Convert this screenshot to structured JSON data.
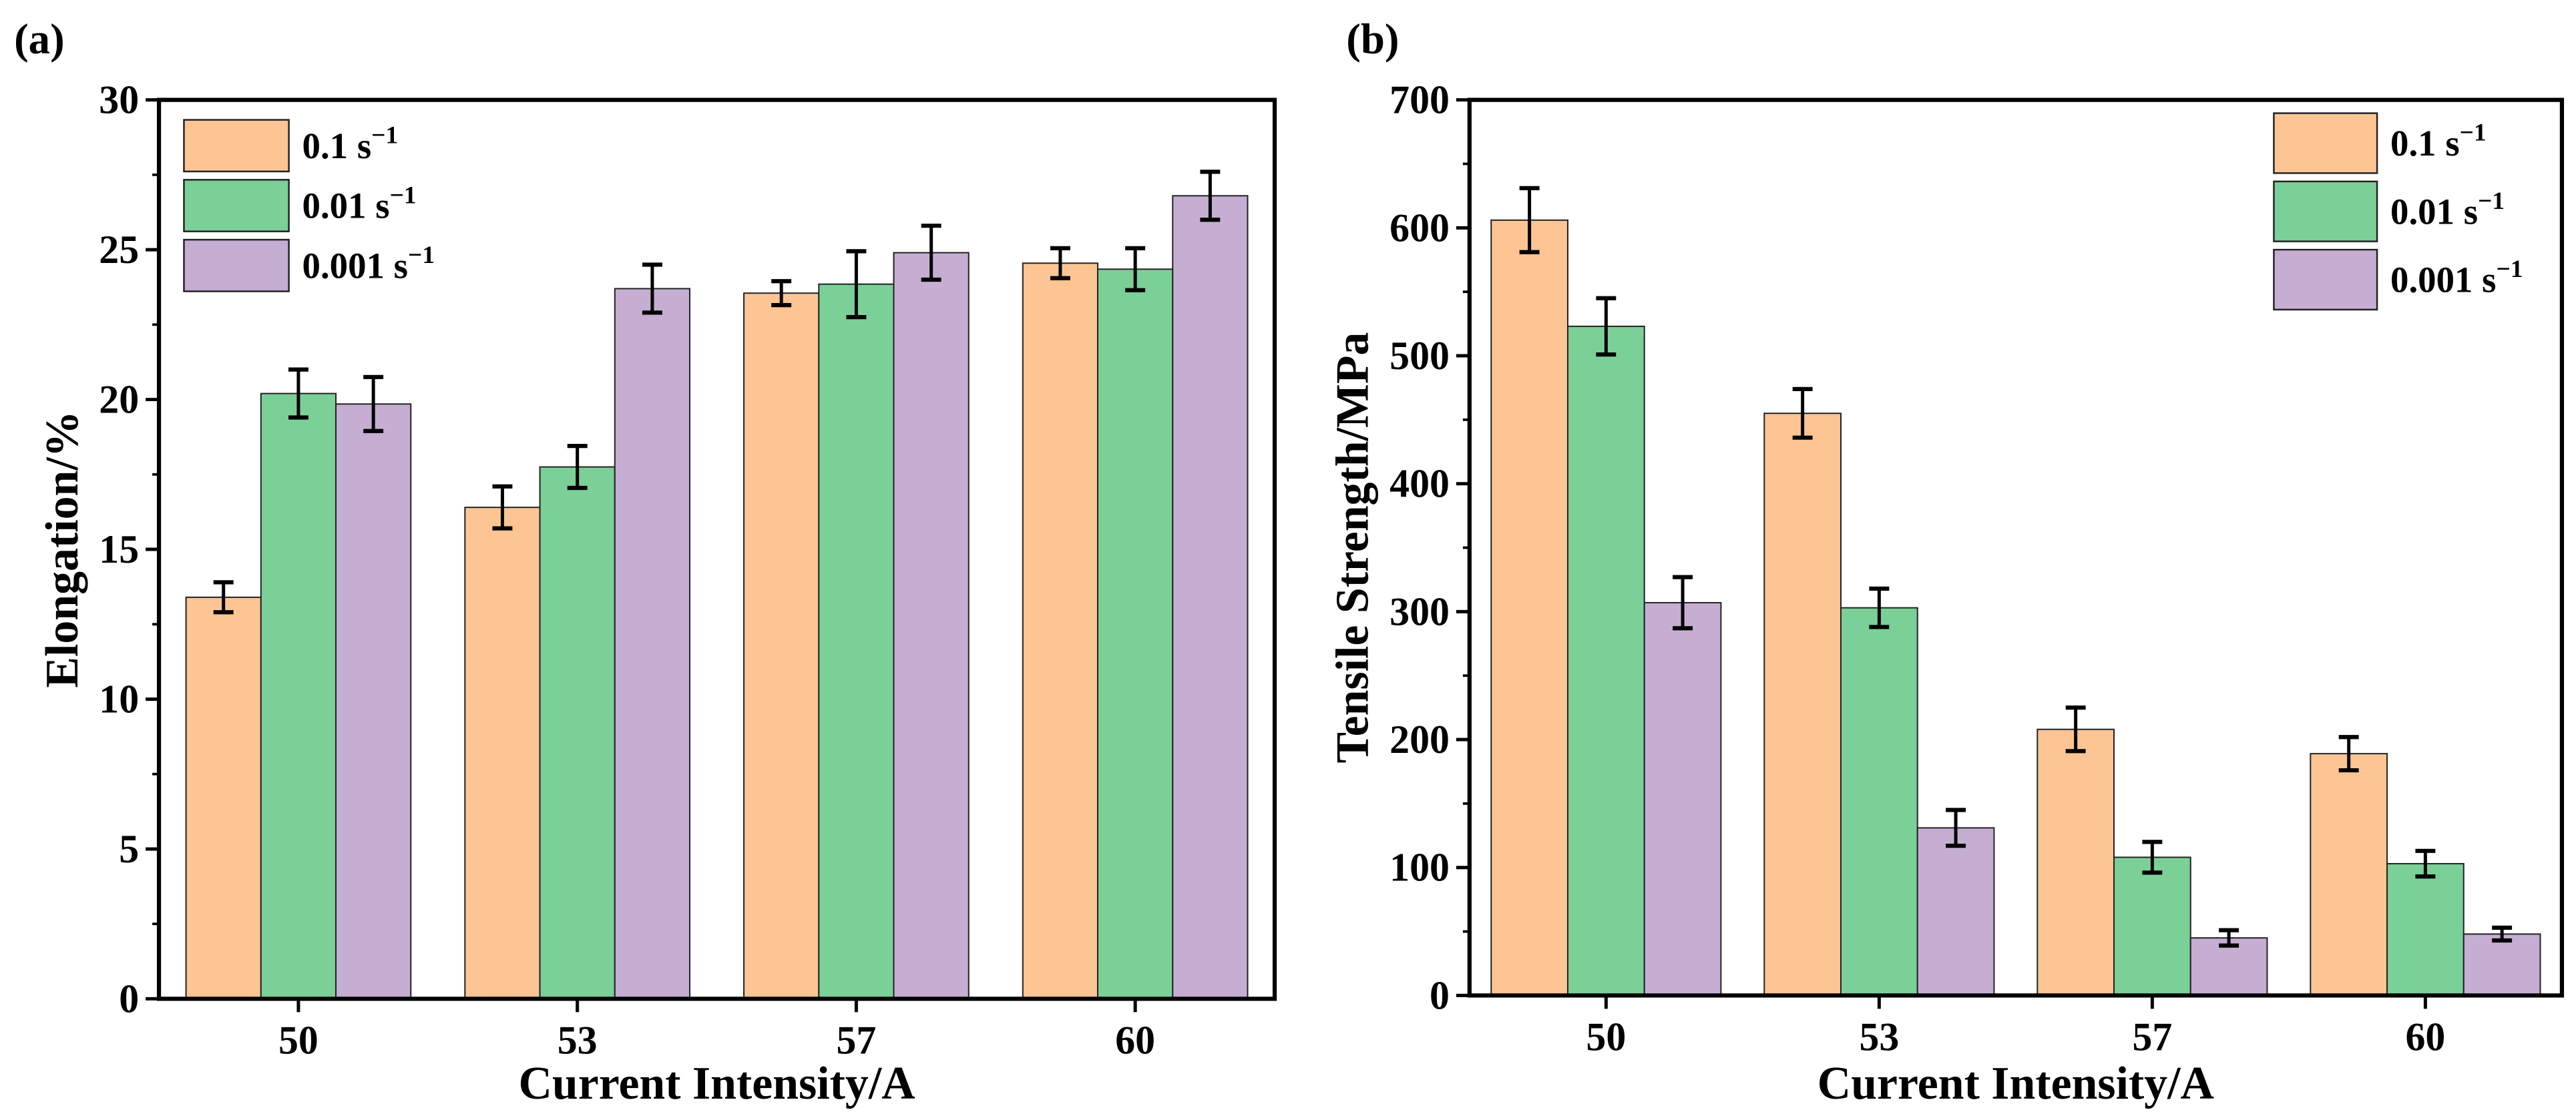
{
  "chart_data": [
    {
      "panel_label": "(a)",
      "type": "bar",
      "categories": [
        "50",
        "53",
        "57",
        "60"
      ],
      "xlabel": "Current Intensity/A",
      "ylabel": "Elongation/%",
      "ylim": [
        0,
        30
      ],
      "yticks": [
        "0",
        "5",
        "10",
        "15",
        "20",
        "25",
        "30"
      ],
      "legend_position": "top-left",
      "series": [
        {
          "name": "0.1 s",
          "superscript": "−1",
          "color": "#FDC594",
          "values": [
            13.4,
            16.4,
            23.55,
            24.55
          ],
          "errors": [
            0.5,
            0.7,
            0.4,
            0.5
          ]
        },
        {
          "name": "0.01 s",
          "superscript": "−1",
          "color": "#7BD098",
          "values": [
            20.2,
            17.75,
            23.85,
            24.35
          ],
          "errors": [
            0.8,
            0.7,
            1.1,
            0.7
          ]
        },
        {
          "name": "0.001 s",
          "superscript": "−1",
          "color": "#C5AED2",
          "values": [
            19.85,
            23.7,
            24.9,
            26.8
          ],
          "errors": [
            0.9,
            0.8,
            0.9,
            0.8
          ]
        }
      ]
    },
    {
      "panel_label": "(b)",
      "type": "bar",
      "categories": [
        "50",
        "53",
        "57",
        "60"
      ],
      "xlabel": "Current Intensity/A",
      "ylabel": "Tensile Strength/MPa",
      "ylim": [
        0,
        700
      ],
      "yticks": [
        "0",
        "100",
        "200",
        "300",
        "400",
        "500",
        "600",
        "700"
      ],
      "legend_position": "top-right",
      "series": [
        {
          "name": "0.1 s",
          "superscript": "−1",
          "color": "#FDC594",
          "values": [
            606,
            455,
            208,
            189
          ],
          "errors": [
            25,
            19,
            17,
            13
          ]
        },
        {
          "name": "0.01 s",
          "superscript": "−1",
          "color": "#7BD098",
          "values": [
            523,
            303,
            108,
            103
          ],
          "errors": [
            22,
            15,
            12,
            10
          ]
        },
        {
          "name": "0.001 s",
          "superscript": "−1",
          "color": "#C5AED2",
          "values": [
            307,
            131,
            45,
            48
          ],
          "errors": [
            20,
            14,
            6,
            5
          ]
        }
      ]
    }
  ]
}
